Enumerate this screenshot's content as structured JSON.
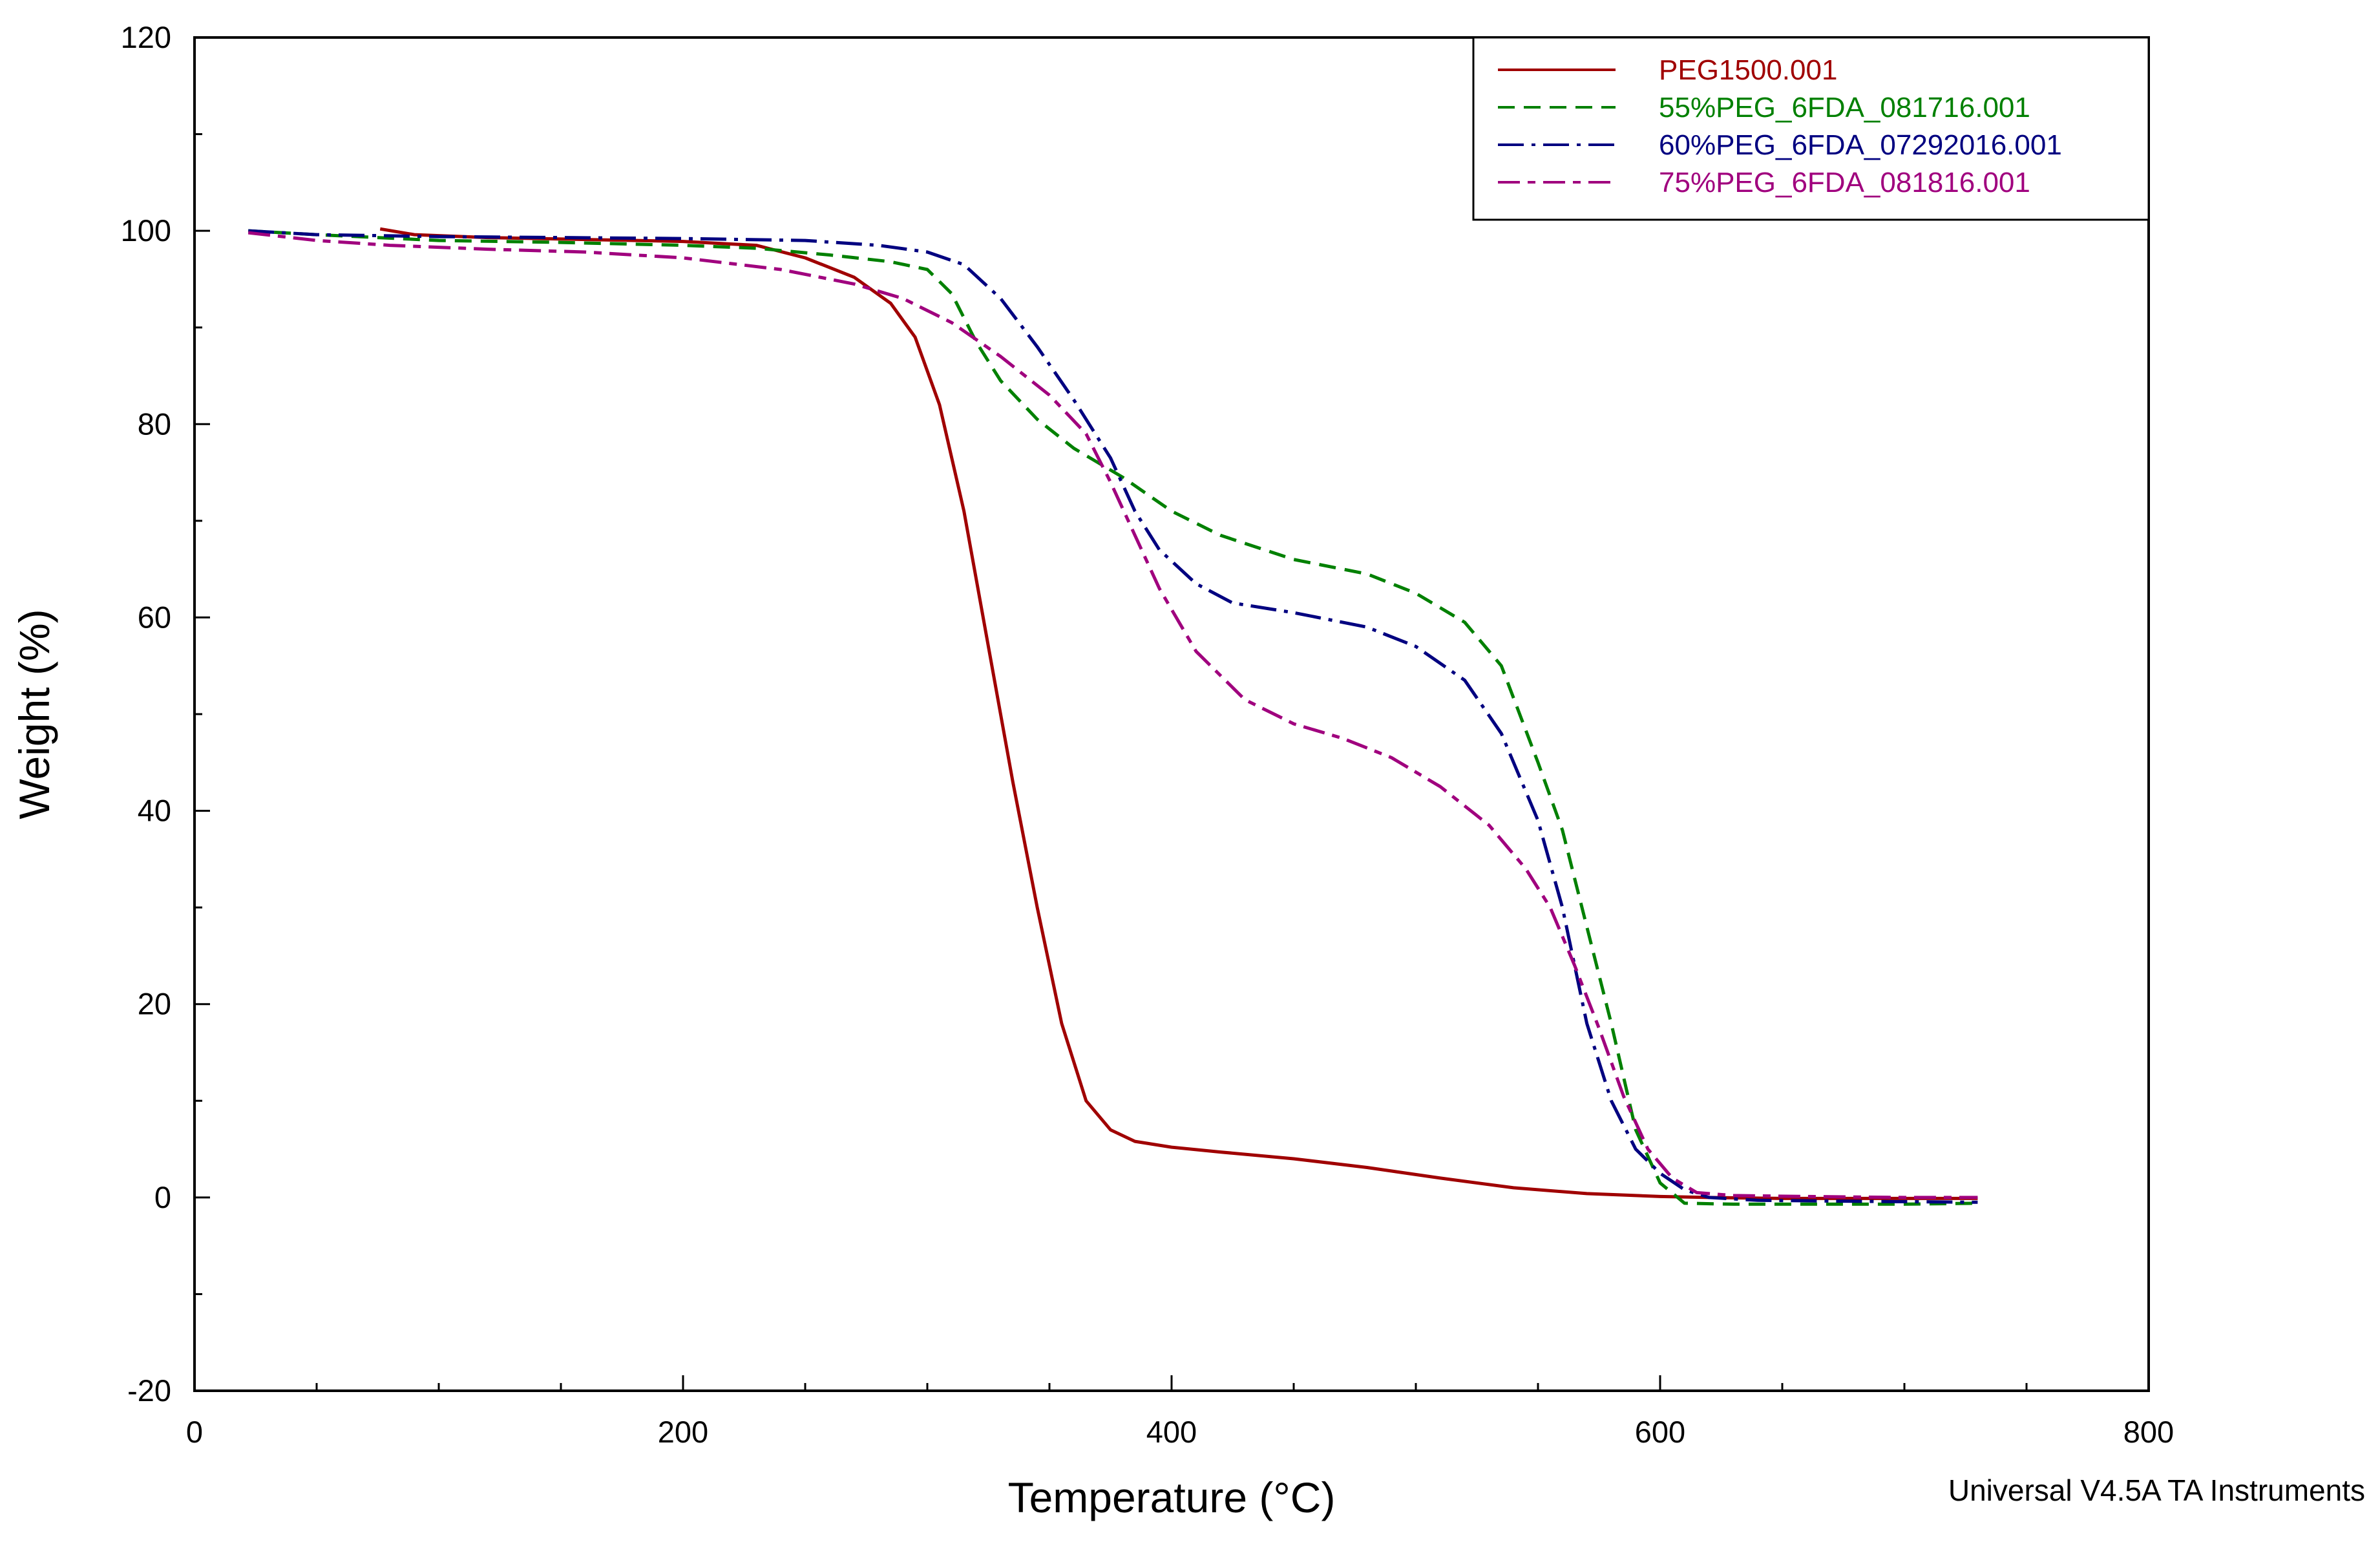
{
  "chart_data": {
    "type": "line",
    "title": "",
    "xlabel": "Temperature (°C)",
    "ylabel": "Weight (%)",
    "xlim": [
      0,
      800
    ],
    "ylim": [
      -20,
      120
    ],
    "xticks": [
      0,
      200,
      400,
      600,
      800
    ],
    "yticks": [
      -20,
      0,
      20,
      40,
      60,
      80,
      100,
      120
    ],
    "x_minor_step": 50,
    "y_minor_step": 10,
    "grid": false,
    "legend_position": "top-right",
    "credit": "Universal V4.5A TA Instruments",
    "series": [
      {
        "name": "PEG1500.001",
        "color": "#a00000",
        "dash": "solid",
        "x": [
          76,
          90,
          120,
          160,
          200,
          230,
          250,
          270,
          285,
          295,
          305,
          315,
          325,
          335,
          345,
          355,
          365,
          375,
          385,
          400,
          420,
          450,
          480,
          510,
          540,
          570,
          600,
          620,
          650,
          700,
          730
        ],
        "y": [
          100.2,
          99.6,
          99.3,
          99.1,
          98.9,
          98.5,
          97.2,
          95.2,
          92.5,
          89,
          82,
          71,
          57,
          43,
          30,
          18,
          10,
          7,
          5.8,
          5.2,
          4.7,
          4.0,
          3.1,
          2.0,
          1.0,
          0.4,
          0.1,
          0,
          -0.1,
          -0.1,
          -0.1
        ]
      },
      {
        "name": "55%PEG_6FDA_081716.001",
        "color": "#008000",
        "dash": "dashed",
        "x": [
          22,
          50,
          100,
          150,
          200,
          230,
          260,
          285,
          300,
          310,
          320,
          330,
          345,
          360,
          380,
          400,
          420,
          450,
          480,
          500,
          520,
          535,
          550,
          560,
          570,
          580,
          590,
          600,
          610,
          630,
          660,
          700,
          730
        ],
        "y": [
          100,
          99.6,
          99.0,
          98.8,
          98.5,
          98.2,
          97.5,
          96.8,
          96.0,
          93.5,
          88.5,
          84.5,
          80.5,
          77.5,
          74.5,
          71.0,
          68.5,
          66.0,
          64.5,
          62.5,
          59.5,
          55.0,
          45.0,
          38.0,
          28.0,
          18.0,
          7.0,
          1.5,
          -0.6,
          -0.7,
          -0.7,
          -0.7,
          -0.6
        ]
      },
      {
        "name": "60%PEG_6FDA_07292016.001",
        "color": "#000080",
        "dash": "dashdot",
        "x": [
          22,
          50,
          100,
          150,
          200,
          250,
          280,
          300,
          315,
          330,
          345,
          360,
          375,
          385,
          395,
          410,
          425,
          450,
          480,
          500,
          520,
          535,
          550,
          560,
          570,
          580,
          590,
          600,
          610,
          620,
          640,
          680,
          730
        ],
        "y": [
          100,
          99.6,
          99.4,
          99.3,
          99.2,
          99.0,
          98.5,
          97.8,
          96.5,
          93.0,
          88.0,
          82.5,
          76.5,
          71.0,
          67.0,
          63.5,
          61.5,
          60.5,
          59.0,
          57.0,
          53.5,
          48.0,
          39.0,
          30.0,
          18.0,
          10.0,
          5.0,
          2.5,
          0.8,
          0.0,
          -0.3,
          -0.4,
          -0.5
        ]
      },
      {
        "name": "75%PEG_6FDA_081816.001",
        "color": "#a0007e",
        "dash": "longdash",
        "x": [
          22,
          50,
          80,
          120,
          160,
          200,
          240,
          270,
          290,
          310,
          330,
          350,
          365,
          375,
          385,
          395,
          410,
          430,
          450,
          470,
          490,
          510,
          530,
          545,
          555,
          565,
          575,
          585,
          595,
          605,
          615,
          630,
          660,
          700,
          730
        ],
        "y": [
          99.8,
          99.0,
          98.5,
          98.1,
          97.8,
          97.2,
          96.0,
          94.5,
          93.0,
          90.5,
          87.0,
          83.0,
          79.0,
          74.0,
          68.5,
          63.0,
          56.5,
          51.5,
          49.0,
          47.5,
          45.5,
          42.5,
          38.5,
          34.0,
          30.0,
          24.0,
          17.5,
          10.5,
          5.0,
          2.0,
          0.5,
          0.2,
          0.1,
          0.0,
          0.0
        ]
      }
    ]
  }
}
